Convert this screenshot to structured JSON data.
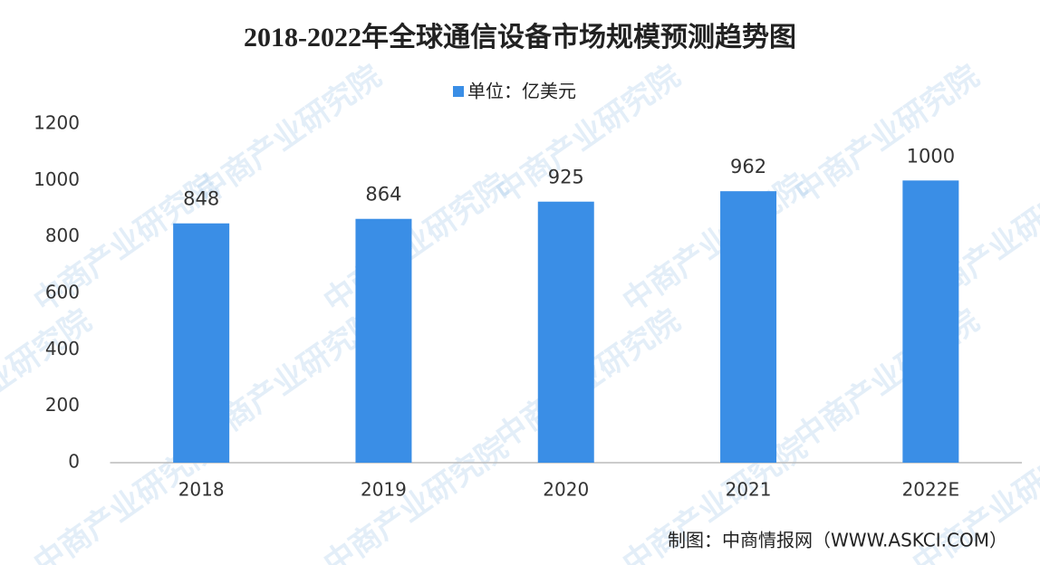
{
  "chart_data": {
    "type": "bar",
    "title": "2018-2022年全球通信设备市场规模预测趋势图",
    "categories": [
      "2018",
      "2019",
      "2020",
      "2021",
      "2022E"
    ],
    "series": [
      {
        "name": "单位：亿美元",
        "color": "#3a8ee6",
        "values": [
          848,
          864,
          925,
          962,
          1000
        ]
      }
    ],
    "ylim": [
      0,
      1200
    ],
    "yticks": [
      0,
      200,
      400,
      600,
      800,
      1000,
      1200
    ],
    "source": "制图：中商情报网（WWW.ASKCI.COM）",
    "watermark": "中商产业研究院"
  }
}
